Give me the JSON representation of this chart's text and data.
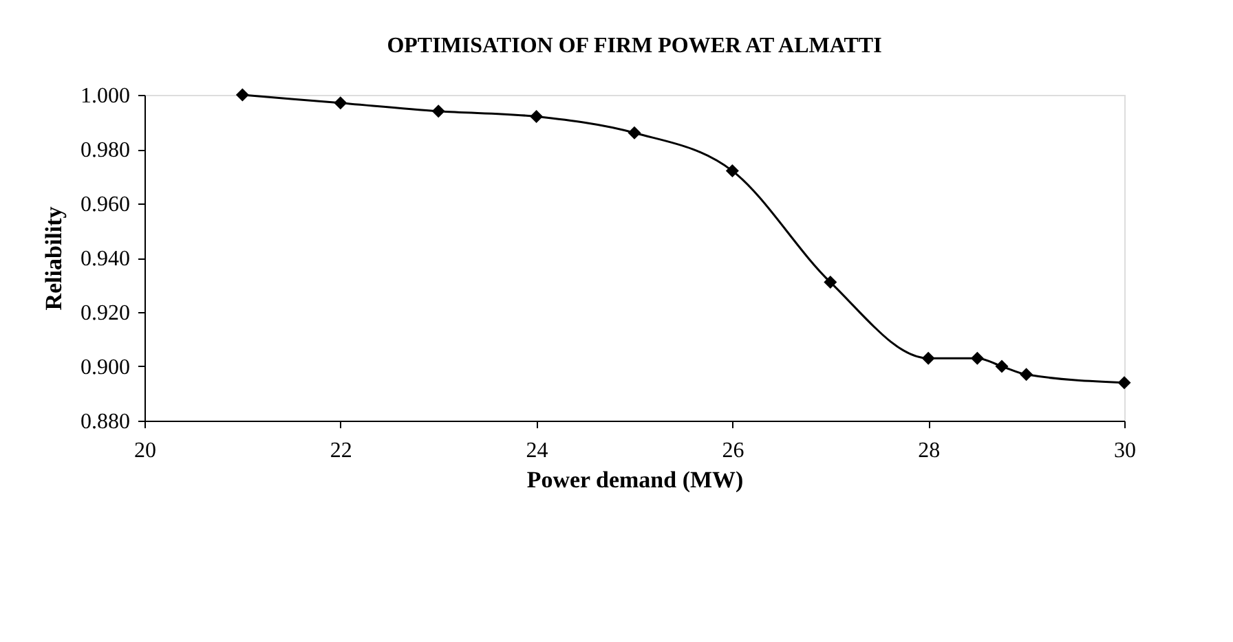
{
  "chart_data": {
    "type": "line",
    "title": "OPTIMISATION OF FIRM POWER AT ALMATTI",
    "xlabel": "Power demand (MW)",
    "ylabel": "Reliability",
    "x": [
      21,
      22,
      23,
      24,
      25,
      26,
      27,
      28,
      28.5,
      28.75,
      29,
      30
    ],
    "series": [
      {
        "color": "#000000",
        "values": [
          1.0,
          0.997,
          0.994,
          0.992,
          0.986,
          0.972,
          0.931,
          0.903,
          0.903,
          0.9,
          0.897,
          0.894
        ]
      }
    ],
    "xlim": [
      20,
      30
    ],
    "xticks": [
      20,
      22,
      24,
      26,
      28,
      30
    ],
    "ylim": [
      0.88,
      1.0
    ],
    "yticks": [
      {
        "value": 0.88,
        "label": "0.880"
      },
      {
        "value": 0.9,
        "label": "0.900"
      },
      {
        "value": 0.92,
        "label": "0.920"
      },
      {
        "value": 0.94,
        "label": "0.940"
      },
      {
        "value": 0.96,
        "label": "0.960"
      },
      {
        "value": 0.98,
        "label": "0.980"
      },
      {
        "value": 1.0,
        "label": "1.000"
      }
    ],
    "marker": "diamond",
    "grid": false,
    "legend": false,
    "line_style": "solid"
  }
}
